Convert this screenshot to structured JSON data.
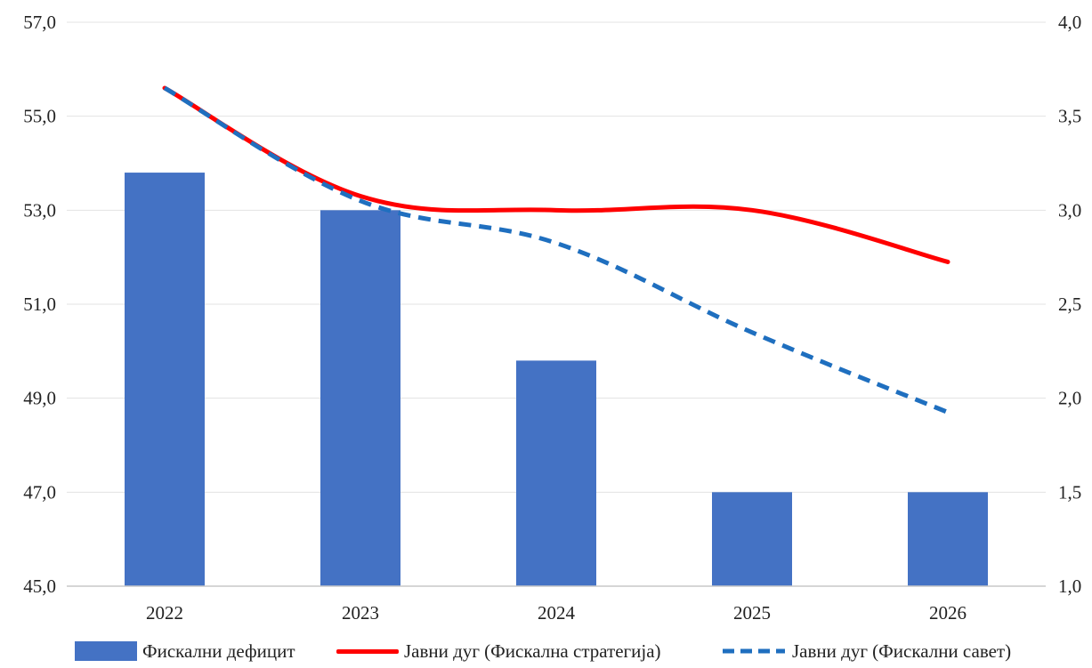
{
  "chart_data": {
    "type": "bar+line",
    "categories": [
      "2022",
      "2023",
      "2024",
      "2025",
      "2026"
    ],
    "left_axis": {
      "ylim": [
        45.0,
        57.0
      ],
      "ticks": [
        "45,0",
        "47,0",
        "49,0",
        "51,0",
        "53,0",
        "55,0",
        "57,0"
      ]
    },
    "right_axis": {
      "ylim": [
        1.0,
        4.0
      ],
      "ticks": [
        "1,0",
        "1,5",
        "2,0",
        "2,5",
        "3,0",
        "3,5",
        "4,0"
      ]
    },
    "series": [
      {
        "name": "Фискални дефицит",
        "type": "bar",
        "axis": "right",
        "color": "#4472C4",
        "values": [
          3.2,
          3.0,
          2.2,
          1.5,
          1.5
        ]
      },
      {
        "name": "Јавни дуг (Фискална стратегија)",
        "type": "line",
        "style": "solid",
        "axis": "left",
        "color": "#FF0000",
        "values": [
          55.6,
          53.3,
          53.0,
          53.0,
          51.9
        ]
      },
      {
        "name": "Јавни дуг (Фискални савет)",
        "type": "line",
        "style": "dashed",
        "axis": "left",
        "color": "#1F6FBF",
        "values": [
          55.6,
          53.2,
          52.3,
          50.4,
          48.7
        ]
      }
    ],
    "grid": true,
    "legend_position": "bottom",
    "title": "",
    "xlabel": "",
    "ylabel": ""
  }
}
